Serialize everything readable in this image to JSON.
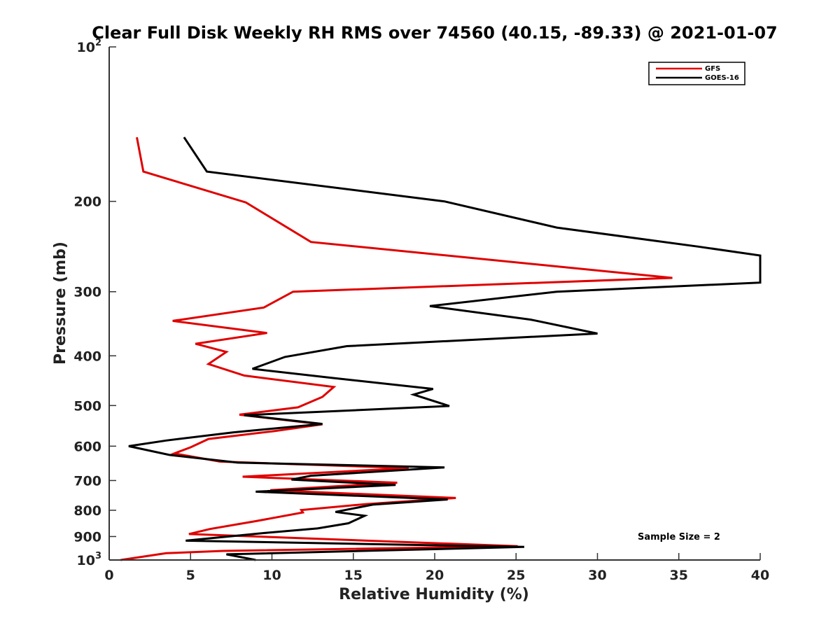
{
  "chart_data": {
    "type": "line",
    "title": "Clear Full Disk Weekly RH RMS over 74560 (40.15, -89.33) @ 2021-01-07",
    "xlabel": "Relative Humidity (%)",
    "ylabel": "Pressure (mb)",
    "xlim": [
      0,
      40
    ],
    "ylim": [
      100,
      1000
    ],
    "y_scale": "log",
    "y_reversed": true,
    "x_ticks": [
      0,
      5,
      10,
      15,
      20,
      25,
      30,
      35,
      40
    ],
    "y_ticks": [
      {
        "value": 100,
        "base": "10",
        "exp": "2"
      },
      {
        "value": 200,
        "label": "200"
      },
      {
        "value": 300,
        "label": "300"
      },
      {
        "value": 400,
        "label": "400"
      },
      {
        "value": 500,
        "label": "500"
      },
      {
        "value": 600,
        "label": "600"
      },
      {
        "value": 700,
        "label": "700"
      },
      {
        "value": 800,
        "label": "800"
      },
      {
        "value": 900,
        "label": "900"
      },
      {
        "value": 1000,
        "base": "10",
        "exp": "3"
      }
    ],
    "legend_position": "top-right",
    "annotation": "Sample Size = 2",
    "series": [
      {
        "name": "GFS",
        "color": "#e00000",
        "points": [
          [
            1.7,
            150
          ],
          [
            2.1,
            175
          ],
          [
            8.4,
            201
          ],
          [
            12.4,
            240
          ],
          [
            34.6,
            282
          ],
          [
            11.3,
            300
          ],
          [
            9.5,
            322
          ],
          [
            3.9,
            342
          ],
          [
            9.7,
            361
          ],
          [
            5.3,
            379
          ],
          [
            7.2,
            393
          ],
          [
            6.1,
            415
          ],
          [
            8.3,
            437
          ],
          [
            13.8,
            460
          ],
          [
            13.1,
            481
          ],
          [
            11.6,
            504
          ],
          [
            8.0,
            521
          ],
          [
            13.1,
            544
          ],
          [
            10.1,
            561
          ],
          [
            6.1,
            581
          ],
          [
            5.0,
            603
          ],
          [
            4.0,
            620
          ],
          [
            6.8,
            643
          ],
          [
            18.4,
            662
          ],
          [
            8.2,
            688
          ],
          [
            17.7,
            707
          ],
          [
            9.9,
            731
          ],
          [
            21.3,
            757
          ],
          [
            15.8,
            778
          ],
          [
            11.8,
            799
          ],
          [
            11.9,
            808
          ],
          [
            9.0,
            840
          ],
          [
            6.2,
            870
          ],
          [
            4.9,
            890
          ],
          [
            25.1,
            940
          ],
          [
            7.0,
            960
          ],
          [
            3.5,
            970
          ],
          [
            0.7,
            1000
          ]
        ]
      },
      {
        "name": "GOES-16",
        "color": "#000000",
        "points": [
          [
            4.6,
            150
          ],
          [
            6.0,
            175
          ],
          [
            20.6,
            200
          ],
          [
            27.5,
            225
          ],
          [
            36.2,
            245
          ],
          [
            40.0,
            255
          ],
          [
            40.0,
            288
          ],
          [
            27.5,
            300
          ],
          [
            19.7,
            320
          ],
          [
            25.9,
            340
          ],
          [
            30.0,
            362
          ],
          [
            14.6,
            383
          ],
          [
            10.8,
            402
          ],
          [
            8.8,
            424
          ],
          [
            13.8,
            442
          ],
          [
            19.9,
            464
          ],
          [
            18.7,
            476
          ],
          [
            20.9,
            501
          ],
          [
            11.3,
            517
          ],
          [
            8.3,
            522
          ],
          [
            13.1,
            543
          ],
          [
            7.6,
            564
          ],
          [
            3.5,
            585
          ],
          [
            1.2,
            600
          ],
          [
            3.7,
            624
          ],
          [
            7.9,
            646
          ],
          [
            20.6,
            660
          ],
          [
            12.4,
            685
          ],
          [
            11.2,
            697
          ],
          [
            17.6,
            714
          ],
          [
            9.0,
            736
          ],
          [
            20.8,
            762
          ],
          [
            16.2,
            780
          ],
          [
            13.9,
            806
          ],
          [
            15.7,
            820
          ],
          [
            14.7,
            848
          ],
          [
            12.8,
            868
          ],
          [
            9.5,
            886
          ],
          [
            4.7,
            917
          ],
          [
            25.5,
            943
          ],
          [
            7.2,
            975
          ],
          [
            9.0,
            1000
          ]
        ]
      }
    ]
  }
}
